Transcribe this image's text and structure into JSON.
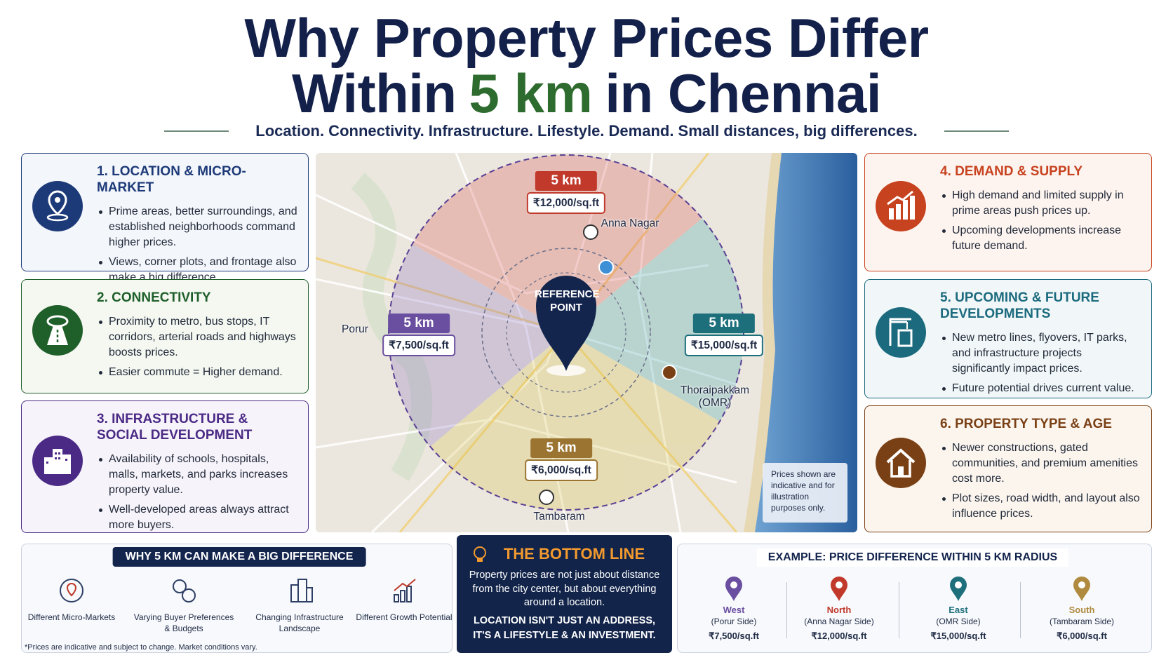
{
  "header": {
    "title_line1": "Why Property Prices Differ",
    "title_line2_start": "Within",
    "title_line2_highlight": "5 km",
    "title_line2_end": "in Chennai",
    "subtitle": "Location. Connectivity. Infrastructure. Lifestyle. Demand. Small distances, big differences."
  },
  "cards": [
    {
      "title": "1. LOCATION & MICRO-MARKET",
      "color": "#1d3a78",
      "bullets": [
        "Prime areas, better surroundings, and established neighborhoods command higher prices.",
        "Views, corner plots, and frontage also make a big difference."
      ]
    },
    {
      "title": "2. CONNECTIVITY",
      "color": "#1f5f2a",
      "bullets": [
        "Proximity to metro, bus stops, IT corridors, arterial roads and highways boosts prices.",
        "Easier commute = Higher demand."
      ]
    },
    {
      "title": "3. INFRASTRUCTURE & SOCIAL DEVELOPMENT",
      "color": "#4b2a86",
      "bullets": [
        "Availability of schools, hospitals, malls, markets, and parks increases property value.",
        "Well-developed areas always attract more buyers."
      ]
    },
    {
      "title": "4. DEMAND & SUPPLY",
      "color": "#c7421f",
      "bullets": [
        "High demand and limited supply in prime areas push prices up.",
        "Upcoming developments increase future demand."
      ]
    },
    {
      "title": "5. UPCOMING & FUTURE DEVELOPMENTS",
      "color": "#1b6a7e",
      "bullets": [
        "New metro lines, flyovers, IT parks, and infrastructure projects significantly impact prices.",
        "Future potential drives current value."
      ]
    },
    {
      "title": "6. PROPERTY TYPE & AGE",
      "color": "#7a4015",
      "bullets": [
        "Newer constructions, gated communities, and premium amenities cost more.",
        "Plot sizes, road width, and layout also influence prices."
      ]
    }
  ],
  "map": {
    "reference_point": "REFERENCE POINT",
    "zones": [
      {
        "distance": "5 km",
        "price": "₹12,000/sq.ft",
        "color": "#c0392b"
      },
      {
        "distance": "5 km",
        "price": "₹7,500/sq.ft",
        "color": "#6a4ea0"
      },
      {
        "distance": "5 km",
        "price": "₹15,000/sq.ft",
        "color": "#1e6f7c"
      },
      {
        "distance": "5 km",
        "price": "₹6,000/sq.ft",
        "color": "#9a7430"
      }
    ],
    "places": [
      "Anna Nagar",
      "Porur",
      "Thoraipakkam (OMR)",
      "Tambaram"
    ],
    "note": "Prices shown are indicative and for illustration purposes only."
  },
  "why_5km": {
    "heading": "WHY 5 KM CAN MAKE A BIG DIFFERENCE",
    "items": [
      "Different Micro-Markets",
      "Varying Buyer Preferences & Budgets",
      "Changing Infrastructure Landscape",
      "Different Growth Potential"
    ],
    "footnote": "*Prices are indicative and subject to change. Market conditions vary."
  },
  "bottom_line": {
    "heading": "THE BOTTOM LINE",
    "text": "Property prices are not just about distance from the city center, but about everything around a location.",
    "statement": "LOCATION ISN'T JUST AN ADDRESS, IT'S A LIFESTYLE & AN INVESTMENT."
  },
  "example": {
    "heading": "EXAMPLE: PRICE DIFFERENCE WITHIN 5 KM RADIUS",
    "items": [
      {
        "direction": "West",
        "side": "(Porur Side)",
        "price": "₹7,500/sq.ft",
        "color": "#6a4ea0"
      },
      {
        "direction": "North",
        "side": "(Anna Nagar Side)",
        "price": "₹12,000/sq.ft",
        "color": "#c0392b"
      },
      {
        "direction": "East",
        "side": "(OMR Side)",
        "price": "₹15,000/sq.ft",
        "color": "#1e6f7c"
      },
      {
        "direction": "South",
        "side": "(Tambaram Side)",
        "price": "₹6,000/sq.ft",
        "color": "#b08a3e"
      }
    ]
  }
}
